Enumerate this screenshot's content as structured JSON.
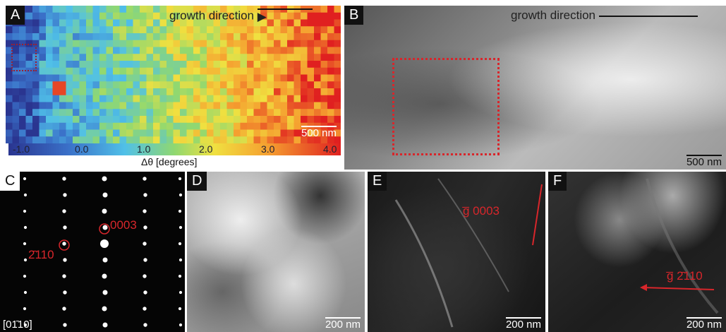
{
  "panels": [
    {
      "label": "A",
      "caption": "growth direction",
      "scale_bar": "500 nm",
      "colorbar": {
        "ticks": [
          "-1.0",
          "0.0",
          "1.0",
          "2.0",
          "3.0",
          "4.0"
        ],
        "label": "Δθ [degrees]"
      }
    },
    {
      "label": "B",
      "caption": "growth direction",
      "scale_bar": "500 nm"
    },
    {
      "label": "C",
      "annotations": [
        "0003",
        "2̄110"
      ],
      "zone_axis": "[01̄10]"
    },
    {
      "label": "D",
      "scale_bar": "200 nm"
    },
    {
      "label": "E",
      "annotation": "g̅ 0003",
      "scale_bar": "200 nm"
    },
    {
      "label": "F",
      "annotation": "g̅ 2̄110",
      "scale_bar": "200 nm"
    }
  ]
}
